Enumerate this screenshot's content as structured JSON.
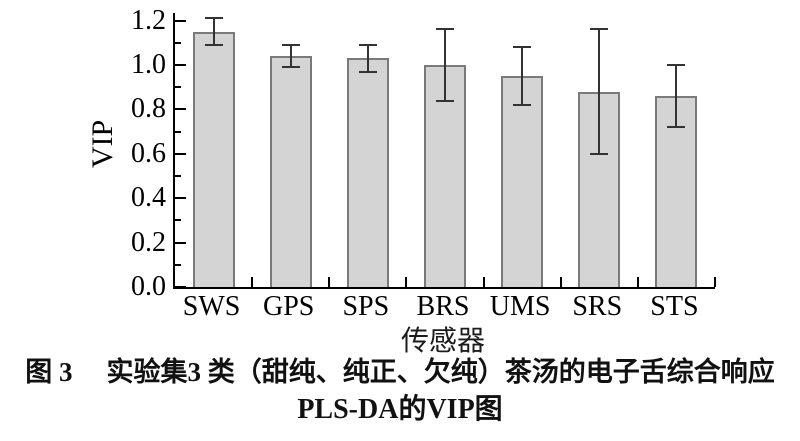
{
  "caption": {
    "prefix": "图 3",
    "line1": "实验集3 类（甜纯、纯正、欠纯）茶汤的电子舌综合响应",
    "line2": "PLS-DA的VIP图"
  },
  "chart_data": {
    "type": "bar",
    "title": "",
    "xlabel": "传感器",
    "ylabel": "VIP",
    "categories": [
      "SWS",
      "GPS",
      "SPS",
      "BRS",
      "UMS",
      "SRS",
      "STS"
    ],
    "series": [
      {
        "name": "VIP",
        "values": [
          1.15,
          1.04,
          1.03,
          1.0,
          0.95,
          0.88,
          0.86
        ],
        "errors": [
          0.06,
          0.05,
          0.06,
          0.16,
          0.13,
          0.28,
          0.14
        ]
      }
    ],
    "ylim": [
      0.0,
      1.2
    ],
    "ytick_step": 0.2,
    "ytick_labels": [
      "0.0",
      "0.2",
      "0.4",
      "0.6",
      "0.8",
      "1.0",
      "1.2"
    ],
    "minor_tick_step": 0.1,
    "grid": false,
    "legend_position": "none",
    "colors": {
      "bar_fill": "#d4d4d4",
      "bar_border": "#7a7a7a",
      "error_bar": "#333333",
      "axis": "#000000",
      "text": "#000000"
    }
  }
}
